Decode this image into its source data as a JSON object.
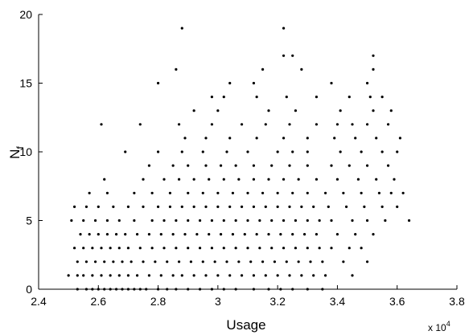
{
  "chart_data": {
    "type": "scatter",
    "xlabel": "Usage",
    "ylabel": "N",
    "ylabel_subscript": "f",
    "x_multiplier": "x 10",
    "x_multiplier_exponent": "4",
    "color": "#000000",
    "xlim": [
      2.4,
      3.8
    ],
    "xticks": [
      2.4,
      2.6,
      2.8,
      3,
      3.2,
      3.4,
      3.6,
      3.8
    ],
    "ylim": [
      0,
      20
    ],
    "yticks": [
      0,
      5,
      10,
      15,
      20
    ],
    "grid": false,
    "x": [
      2.53,
      2.56,
      2.58,
      2.6,
      2.62,
      2.64,
      2.66,
      2.68,
      2.7,
      2.72,
      2.74,
      2.76,
      2.8,
      2.83,
      2.86,
      2.9,
      2.94,
      2.98,
      3.02,
      3.06,
      3.12,
      3.17,
      3.21,
      3.25,
      3.3,
      3.35,
      2.5,
      2.53,
      2.55,
      2.58,
      2.61,
      2.64,
      2.67,
      2.7,
      2.73,
      2.77,
      2.81,
      2.85,
      2.88,
      2.92,
      2.96,
      3.0,
      3.04,
      3.08,
      3.12,
      3.16,
      3.2,
      3.24,
      3.28,
      3.32,
      3.36,
      3.45,
      2.53,
      2.56,
      2.59,
      2.62,
      2.65,
      2.68,
      2.71,
      2.75,
      2.79,
      2.83,
      2.87,
      2.91,
      2.95,
      2.99,
      3.03,
      3.07,
      3.11,
      3.15,
      3.19,
      3.23,
      3.27,
      3.31,
      3.35,
      3.42,
      3.5,
      2.52,
      2.55,
      2.58,
      2.61,
      2.64,
      2.67,
      2.7,
      2.74,
      2.78,
      2.82,
      2.86,
      2.9,
      2.94,
      2.98,
      3.02,
      3.06,
      3.1,
      3.14,
      3.18,
      3.22,
      3.26,
      3.3,
      3.34,
      3.38,
      3.44,
      3.48,
      2.54,
      2.57,
      2.6,
      2.63,
      2.66,
      2.69,
      2.73,
      2.77,
      2.81,
      2.85,
      2.89,
      2.93,
      2.97,
      3.01,
      3.05,
      3.09,
      3.13,
      3.17,
      3.21,
      3.25,
      3.29,
      3.33,
      3.4,
      3.46,
      3.52,
      2.51,
      2.55,
      2.59,
      2.63,
      2.67,
      2.72,
      2.78,
      2.82,
      2.86,
      2.9,
      2.94,
      2.98,
      3.02,
      3.06,
      3.1,
      3.14,
      3.18,
      3.22,
      3.26,
      3.3,
      3.34,
      3.38,
      3.45,
      3.5,
      3.56,
      3.64,
      2.52,
      2.56,
      2.6,
      2.65,
      2.7,
      2.75,
      2.8,
      2.84,
      2.88,
      2.92,
      2.96,
      3.0,
      3.04,
      3.08,
      3.12,
      3.16,
      3.2,
      3.24,
      3.28,
      3.32,
      3.37,
      3.43,
      3.49,
      3.55,
      3.6,
      2.57,
      2.63,
      2.72,
      2.78,
      2.84,
      2.9,
      2.95,
      3.0,
      3.05,
      3.1,
      3.15,
      3.2,
      3.25,
      3.3,
      3.36,
      3.42,
      3.48,
      3.54,
      3.58,
      3.62,
      2.62,
      2.75,
      2.82,
      2.87,
      2.92,
      2.97,
      3.02,
      3.07,
      3.12,
      3.17,
      3.22,
      3.27,
      3.33,
      3.4,
      3.47,
      3.53,
      3.59,
      2.77,
      2.85,
      2.9,
      2.96,
      3.01,
      3.06,
      3.12,
      3.18,
      3.24,
      3.3,
      3.38,
      3.44,
      3.5,
      3.57,
      2.69,
      2.8,
      2.88,
      2.95,
      3.03,
      3.1,
      3.2,
      3.25,
      3.3,
      3.41,
      3.48,
      3.55,
      3.6,
      2.89,
      2.96,
      3.04,
      3.13,
      3.22,
      3.3,
      3.39,
      3.46,
      3.53,
      3.61,
      2.61,
      2.74,
      2.87,
      2.98,
      3.08,
      3.16,
      3.24,
      3.33,
      3.4,
      3.45,
      3.5,
      3.57,
      2.92,
      3.0,
      3.17,
      3.26,
      3.41,
      3.52,
      3.58,
      2.98,
      3.02,
      3.13,
      3.23,
      3.33,
      3.44,
      3.51,
      3.55,
      2.8,
      3.04,
      3.12,
      3.38,
      3.5,
      2.86,
      3.15,
      3.28,
      3.52,
      3.22,
      3.25,
      3.52,
      2.88,
      3.22
    ],
    "values": [
      0,
      0,
      0,
      0,
      0,
      0,
      0,
      0,
      0,
      0,
      0,
      0,
      0,
      0,
      0,
      0,
      0,
      0,
      0,
      0,
      0,
      0,
      0,
      0,
      0,
      0,
      1,
      1,
      1,
      1,
      1,
      1,
      1,
      1,
      1,
      1,
      1,
      1,
      1,
      1,
      1,
      1,
      1,
      1,
      1,
      1,
      1,
      1,
      1,
      1,
      1,
      1,
      2,
      2,
      2,
      2,
      2,
      2,
      2,
      2,
      2,
      2,
      2,
      2,
      2,
      2,
      2,
      2,
      2,
      2,
      2,
      2,
      2,
      2,
      2,
      2,
      2,
      3,
      3,
      3,
      3,
      3,
      3,
      3,
      3,
      3,
      3,
      3,
      3,
      3,
      3,
      3,
      3,
      3,
      3,
      3,
      3,
      3,
      3,
      3,
      3,
      3,
      3,
      4,
      4,
      4,
      4,
      4,
      4,
      4,
      4,
      4,
      4,
      4,
      4,
      4,
      4,
      4,
      4,
      4,
      4,
      4,
      4,
      4,
      4,
      4,
      4,
      4,
      5,
      5,
      5,
      5,
      5,
      5,
      5,
      5,
      5,
      5,
      5,
      5,
      5,
      5,
      5,
      5,
      5,
      5,
      5,
      5,
      5,
      5,
      5,
      5,
      5,
      5,
      6,
      6,
      6,
      6,
      6,
      6,
      6,
      6,
      6,
      6,
      6,
      6,
      6,
      6,
      6,
      6,
      6,
      6,
      6,
      6,
      6,
      6,
      6,
      6,
      6,
      7,
      7,
      7,
      7,
      7,
      7,
      7,
      7,
      7,
      7,
      7,
      7,
      7,
      7,
      7,
      7,
      7,
      7,
      7,
      7,
      8,
      8,
      8,
      8,
      8,
      8,
      8,
      8,
      8,
      8,
      8,
      8,
      8,
      8,
      8,
      8,
      8,
      9,
      9,
      9,
      9,
      9,
      9,
      9,
      9,
      9,
      9,
      9,
      9,
      9,
      9,
      10,
      10,
      10,
      10,
      10,
      10,
      10,
      10,
      10,
      10,
      10,
      10,
      10,
      11,
      11,
      11,
      11,
      11,
      11,
      11,
      11,
      11,
      11,
      12,
      12,
      12,
      12,
      12,
      12,
      12,
      12,
      12,
      12,
      12,
      12,
      13,
      13,
      13,
      13,
      13,
      13,
      13,
      14,
      14,
      14,
      14,
      14,
      14,
      14,
      14,
      15,
      15,
      15,
      15,
      15,
      16,
      16,
      16,
      16,
      17,
      17,
      17,
      19,
      19
    ]
  }
}
